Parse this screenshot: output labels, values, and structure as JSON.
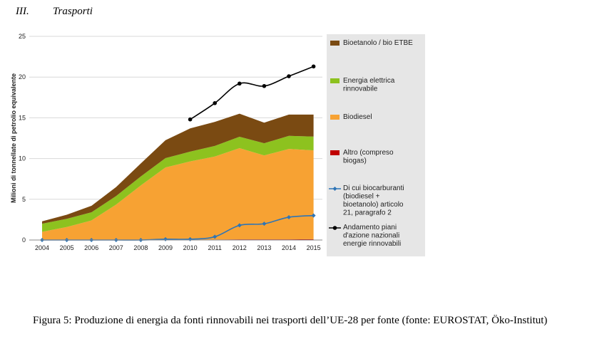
{
  "header": {
    "number": "III.",
    "title": "Trasporti"
  },
  "caption": "Figura 5: Produzione di energia da fonti rinnovabili nei trasporti dell’UE-28 per fonte (fonte: EUROSTAT, Öko-Institut)",
  "chart_data": {
    "type": "area",
    "xlabel": "",
    "ylabel": "Milioni di tonnellate di petrolio equivalente",
    "ylim": [
      0,
      25
    ],
    "yticks": [
      0,
      5,
      10,
      15,
      20,
      25
    ],
    "grid": true,
    "legend_position": "right",
    "categories": [
      "2004",
      "2005",
      "2006",
      "2007",
      "2008",
      "2009",
      "2010",
      "2011",
      "2012",
      "2013",
      "2014",
      "2015"
    ],
    "stacked_series": [
      {
        "name": "Altro (compreso biogas)",
        "color": "#c00000",
        "values": [
          0.05,
          0.05,
          0.05,
          0.05,
          0.05,
          0.05,
          0.05,
          0.05,
          0.08,
          0.08,
          0.08,
          0.1
        ]
      },
      {
        "name": "Biodiesel",
        "color": "#f7a233",
        "values": [
          0.95,
          1.55,
          2.35,
          4.3,
          6.65,
          8.85,
          9.6,
          10.2,
          11.2,
          10.3,
          11.1,
          10.9
        ]
      },
      {
        "name": "Energia elettrica rinnovabile",
        "color": "#8dc21f",
        "values": [
          1.0,
          1.0,
          1.0,
          1.05,
          1.1,
          1.15,
          1.2,
          1.3,
          1.4,
          1.5,
          1.6,
          1.7
        ]
      },
      {
        "name": "Bioetanolo / bio ETBE",
        "color": "#7a4a12",
        "values": [
          0.3,
          0.5,
          0.8,
          1.1,
          1.6,
          2.2,
          2.85,
          2.95,
          2.82,
          2.52,
          2.62,
          2.7
        ]
      }
    ],
    "line_series": [
      {
        "name": "Di cui biocarburanti (biodiesel + bioetanolo) articolo 21, paragrafo 2",
        "color": "#2e75b6",
        "marker": "diamond",
        "values": [
          0,
          0,
          0,
          0,
          0,
          0.1,
          0.1,
          0.4,
          1.8,
          2.0,
          2.8,
          3.0
        ]
      },
      {
        "name": "Andamento piani d'azione nazionali energie rinnovabili",
        "color": "#000000",
        "marker": "circle",
        "values": [
          null,
          null,
          null,
          null,
          null,
          null,
          14.8,
          16.8,
          19.2,
          18.9,
          20.1,
          21.3
        ]
      }
    ],
    "legend": [
      {
        "label": "Bioetanolo / bio ETBE",
        "color": "#7a4a12",
        "kind": "box"
      },
      {
        "label": "Energia elettrica rinnovabile",
        "color": "#8dc21f",
        "kind": "box"
      },
      {
        "label": "Biodiesel",
        "color": "#f7a233",
        "kind": "box"
      },
      {
        "label": "Altro (compreso biogas)",
        "color": "#c00000",
        "kind": "box"
      },
      {
        "label": "Di cui biocarburanti (biodiesel + bioetanolo) articolo 21, paragrafo 2",
        "color": "#2e75b6",
        "kind": "line-diamond"
      },
      {
        "label": "Andamento piani d'azione nazionali energie rinnovabili",
        "color": "#000000",
        "kind": "line-circle"
      }
    ]
  }
}
